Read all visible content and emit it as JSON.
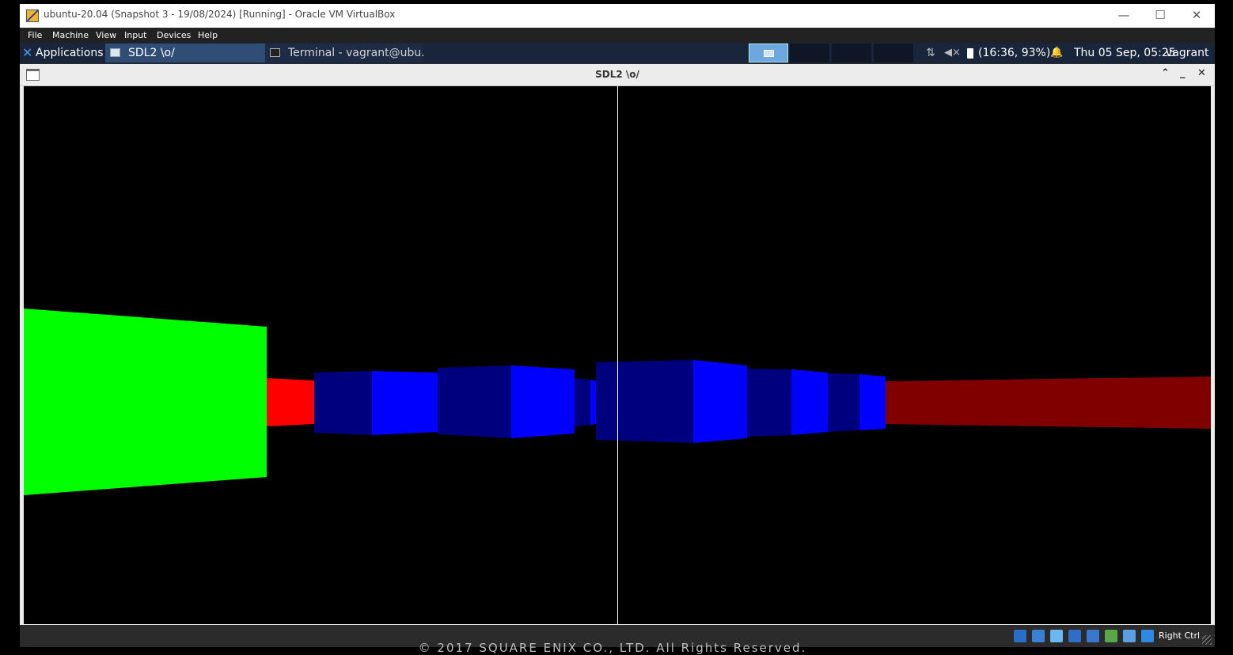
{
  "host_window": {
    "title": "ubuntu-20.04 (Snapshot 3 - 19/08/2024) [Running] - Oracle VM VirtualBox",
    "controls": {
      "minimize": "—",
      "maximize": "☐",
      "close": "✕"
    }
  },
  "vbox_menu": [
    "File",
    "Machine",
    "View",
    "Input",
    "Devices",
    "Help"
  ],
  "guest_panel": {
    "applications_label": "Applications ⋮",
    "tasks": [
      {
        "label": "SDL2 \\o/"
      },
      {
        "label": "Terminal - vagrant@ubu..."
      }
    ],
    "net_icon": "⇅",
    "mute_icon": "◀×",
    "battery": "(16:36, 93%)",
    "bell_icon": "🔔",
    "clock": "Thu 05 Sep, 05:25",
    "user": "vagrant"
  },
  "sdl_window": {
    "title": "SDL2 \\o/",
    "controls": {
      "shade": "⌃",
      "minimize": "_",
      "close": "✕"
    }
  },
  "scene": {
    "colors": {
      "background": "#000000",
      "crosshair": "#ffffff",
      "green_wall": "#00ff00",
      "red_bright": "#ff0000",
      "red_dark": "#800000",
      "blue_bright": "#0000ff",
      "blue_dark": "#00007f"
    }
  },
  "vbox_status": {
    "icons": [
      "hdd-icon",
      "optical-icon",
      "audio-icon",
      "network-icon",
      "usb-icon",
      "shared-folder-icon",
      "display-icon",
      "recording-icon",
      "cpu-icon",
      "mouse-integration-icon"
    ],
    "host_key": "Right Ctrl"
  },
  "footer": {
    "copyright": "© 2017 SQUARE ENIX CO., LTD. All Rights Reserved."
  }
}
